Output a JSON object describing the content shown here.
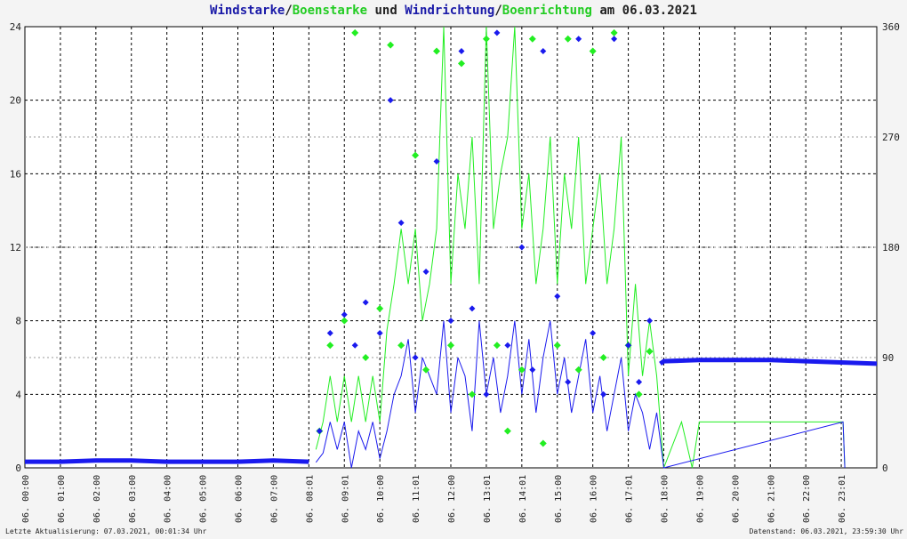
{
  "title": {
    "part1": "Windstarke",
    "sep1": "/",
    "part2": "Boenstarke",
    "part3": " und ",
    "part4": "Windrichtung",
    "sep2": "/",
    "part5": "Boenrichtung",
    "part6": " am 06.03.2021"
  },
  "footer": {
    "left": "Letzte Aktualisierung: 07.03.2021, 00:01:34 Uhr",
    "right": "Datenstand: 06.03.2021, 23:59:30 Uhr"
  },
  "colors": {
    "wind": "#1a1aee",
    "gust": "#22ee22",
    "grid": "#000000",
    "background": "#ffffff"
  },
  "chart_data": {
    "type": "line",
    "y_left": {
      "range": [
        0,
        24
      ],
      "ticks": [
        "0",
        "4",
        "8",
        "12",
        "16",
        "20",
        "24"
      ]
    },
    "y_right": {
      "range": [
        0,
        360
      ],
      "ticks": [
        "0",
        "90",
        "180",
        "270",
        "360"
      ]
    },
    "x": {
      "range": [
        0,
        24
      ],
      "ticks": [
        "06. 00:00",
        "06. 01:00",
        "06. 02:00",
        "06. 03:00",
        "06. 04:00",
        "06. 05:00",
        "06. 06:00",
        "06. 07:00",
        "06. 08:01",
        "06. 09:01",
        "06. 10:00",
        "06. 11:01",
        "06. 12:00",
        "06. 13:01",
        "06. 14:01",
        "06. 15:00",
        "06. 16:00",
        "06. 17:01",
        "06. 18:00",
        "06. 19:00",
        "06. 20:00",
        "06. 21:00",
        "06. 22:00",
        "06. 23:01"
      ]
    },
    "grid": true,
    "series": [
      {
        "name": "Windstarke",
        "color": "#1a1aee",
        "x": [
          8.2,
          8.4,
          8.6,
          8.8,
          9.0,
          9.2,
          9.4,
          9.6,
          9.8,
          10.0,
          10.2,
          10.4,
          10.6,
          10.8,
          11.0,
          11.2,
          11.4,
          11.6,
          11.8,
          12.0,
          12.2,
          12.4,
          12.6,
          12.8,
          13.0,
          13.2,
          13.4,
          13.6,
          13.8,
          14.0,
          14.2,
          14.4,
          14.6,
          14.8,
          15.0,
          15.2,
          15.4,
          15.6,
          15.8,
          16.0,
          16.2,
          16.4,
          16.6,
          16.8,
          17.0,
          17.2,
          17.4,
          17.6,
          17.8,
          18.0,
          23.05,
          23.1
        ],
        "values": [
          0.3,
          0.8,
          2.5,
          1.0,
          2.5,
          0.0,
          2.0,
          1.0,
          2.5,
          0.5,
          2.0,
          4.0,
          5.0,
          7.0,
          3.0,
          6.0,
          5.0,
          4.0,
          8.0,
          3.0,
          6.0,
          5.0,
          2.0,
          8.0,
          4.0,
          6.0,
          3.0,
          5.0,
          8.0,
          4.0,
          7.0,
          3.0,
          6.0,
          8.0,
          4.0,
          6.0,
          3.0,
          5.0,
          7.0,
          3.0,
          5.0,
          2.0,
          4.0,
          6.0,
          2.0,
          4.0,
          3.0,
          1.0,
          3.0,
          0.0,
          2.5,
          0.0
        ]
      },
      {
        "name": "Boenstarke",
        "color": "#22ee22",
        "x": [
          8.2,
          8.4,
          8.6,
          8.8,
          9.0,
          9.2,
          9.4,
          9.6,
          9.8,
          10.0,
          10.2,
          10.4,
          10.6,
          10.8,
          11.0,
          11.2,
          11.4,
          11.6,
          11.8,
          12.0,
          12.2,
          12.4,
          12.6,
          12.8,
          13.0,
          13.2,
          13.4,
          13.6,
          13.8,
          14.0,
          14.2,
          14.4,
          14.6,
          14.8,
          15.0,
          15.2,
          15.4,
          15.6,
          15.8,
          16.0,
          16.2,
          16.4,
          16.6,
          16.8,
          17.0,
          17.2,
          17.4,
          17.6,
          17.8,
          18.0,
          18.5,
          18.8,
          19.0,
          23.05,
          23.1
        ],
        "values": [
          1.0,
          2.5,
          5.0,
          2.5,
          5.0,
          2.5,
          5.0,
          2.5,
          5.0,
          2.5,
          7.5,
          10.0,
          13.0,
          10.0,
          13.0,
          8.0,
          10.0,
          13.0,
          24.0,
          10.0,
          16.0,
          13.0,
          18.0,
          10.0,
          24.0,
          13.0,
          16.0,
          18.0,
          24.0,
          13.0,
          16.0,
          10.0,
          13.0,
          18.0,
          10.0,
          16.0,
          13.0,
          18.0,
          10.0,
          13.0,
          16.0,
          10.0,
          13.0,
          18.0,
          5.0,
          10.0,
          5.0,
          8.0,
          5.0,
          0.0,
          2.5,
          0.0,
          2.5,
          2.5,
          0.0
        ]
      },
      {
        "name": "Windrichtung",
        "color": "#1a1aee",
        "x": [
          0.0,
          1.0,
          2.0,
          3.0,
          4.0,
          5.0,
          6.0,
          7.0,
          8.0,
          8.3,
          8.6,
          9.0,
          9.3,
          9.6,
          10.0,
          10.3,
          10.6,
          11.0,
          11.3,
          11.6,
          12.0,
          12.3,
          12.6,
          13.0,
          13.3,
          13.6,
          14.0,
          14.3,
          14.6,
          15.0,
          15.3,
          15.6,
          16.0,
          16.3,
          16.6,
          17.0,
          17.3,
          17.6,
          17.9,
          18.0,
          19.0,
          20.0,
          21.0,
          22.0,
          23.0,
          24.0
        ],
        "values": [
          5,
          5,
          6,
          6,
          5,
          5,
          5,
          6,
          5,
          30,
          110,
          125,
          100,
          135,
          110,
          300,
          200,
          90,
          160,
          250,
          120,
          340,
          130,
          60,
          355,
          100,
          180,
          80,
          340,
          140,
          70,
          350,
          110,
          60,
          350,
          100,
          70,
          120,
          85,
          87,
          88,
          88,
          88,
          87,
          86,
          85
        ]
      },
      {
        "name": "Boenrichtung",
        "color": "#22ee22",
        "x": [
          8.3,
          8.6,
          9.0,
          9.3,
          9.6,
          10.0,
          10.3,
          10.6,
          11.0,
          11.3,
          11.6,
          12.0,
          12.3,
          12.6,
          13.0,
          13.3,
          13.6,
          14.0,
          14.3,
          14.6,
          15.0,
          15.3,
          15.6,
          16.0,
          16.3,
          16.6,
          17.0,
          17.3,
          17.6
        ],
        "values": [
          30,
          100,
          120,
          355,
          90,
          130,
          345,
          100,
          255,
          80,
          340,
          100,
          330,
          60,
          350,
          100,
          30,
          80,
          350,
          20,
          100,
          350,
          80,
          340,
          90,
          355,
          100,
          60,
          95
        ]
      }
    ]
  }
}
